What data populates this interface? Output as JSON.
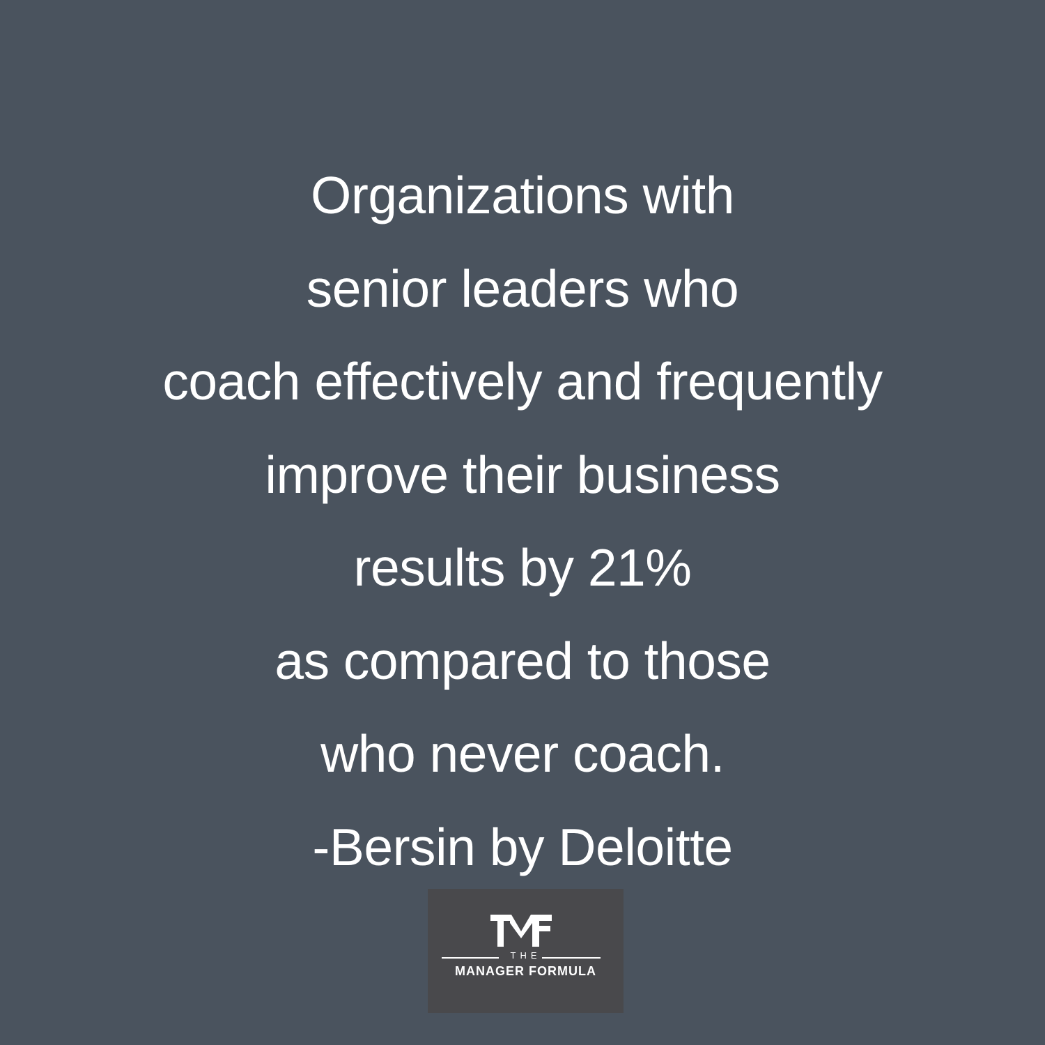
{
  "quote": {
    "lines": [
      "Organizations with",
      "senior leaders who",
      "coach effectively and frequently",
      "improve their business",
      "results by 21%",
      "as compared to those",
      "who never coach.",
      "-Bersin by Deloitte"
    ]
  },
  "logo": {
    "monogram": "TMF",
    "the": "THE",
    "name": "MANAGER FORMULA"
  },
  "colors": {
    "background": "#4a535e",
    "logo_background": "#49494c",
    "text": "#ffffff"
  }
}
